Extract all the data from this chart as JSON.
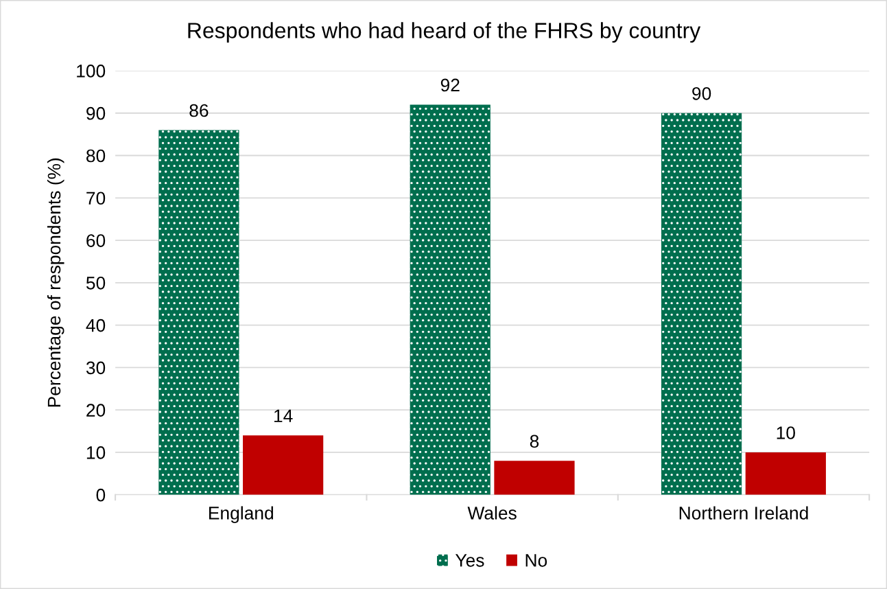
{
  "chart_data": {
    "type": "bar",
    "title": "Respondents who had heard of the FHRS by country",
    "ylabel": "Percentage of respondents (%)",
    "categories": [
      "England",
      "Wales",
      "Northern Ireland"
    ],
    "series": [
      {
        "name": "Yes",
        "color": "#006e4e",
        "values": [
          86,
          92,
          90
        ]
      },
      {
        "name": "No",
        "color": "#c00000",
        "values": [
          14,
          8,
          10
        ]
      }
    ],
    "ylim": [
      0,
      100
    ],
    "yticks": [
      0,
      10,
      20,
      30,
      40,
      50,
      60,
      70,
      80,
      90,
      100
    ],
    "grid": "y",
    "legend": "bottom",
    "data_labels": true
  }
}
